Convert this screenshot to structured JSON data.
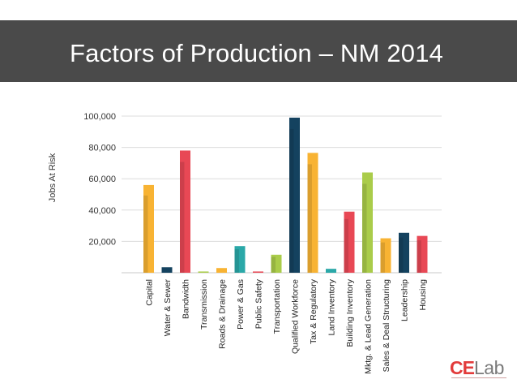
{
  "header": {
    "title": "Factors of Production – NM 2014"
  },
  "logo": {
    "ce": "CE",
    "lab": "Lab"
  },
  "chart_data": {
    "type": "bar",
    "ylabel": "Jobs At Risk",
    "ylim": [
      0,
      100000
    ],
    "yticks": [
      20000,
      40000,
      60000,
      80000,
      100000
    ],
    "ytick_labels": [
      "20,000",
      "40,000",
      "60,000",
      "80,000",
      "100,000"
    ],
    "grid": true,
    "categories": [
      "Capital",
      "Water & Sewer",
      "Bandwidth",
      "Transmission",
      "Roads & Drainage",
      "Power & Gas",
      "Public Safety",
      "Transportation",
      "Qualified Workforce",
      "Tax & Regulatory",
      "Land Inventory",
      "Building Inventory",
      "Mktg. & Lead Generation",
      "Sales & Deal Structuring",
      "Leadership",
      "Housing"
    ],
    "values": [
      56000,
      3500,
      78000,
      800,
      3000,
      17000,
      800,
      11500,
      99000,
      76500,
      2500,
      39000,
      64000,
      22000,
      25500,
      23500
    ],
    "colors": [
      "#f8b333",
      "#14425f",
      "#e84855",
      "#aacc4a",
      "#f8b333",
      "#2aa8a8",
      "#e84855",
      "#aacc4a",
      "#14425f",
      "#f8b333",
      "#2aa8a8",
      "#e84855",
      "#aacc4a",
      "#f8b333",
      "#14425f",
      "#e84855"
    ]
  }
}
